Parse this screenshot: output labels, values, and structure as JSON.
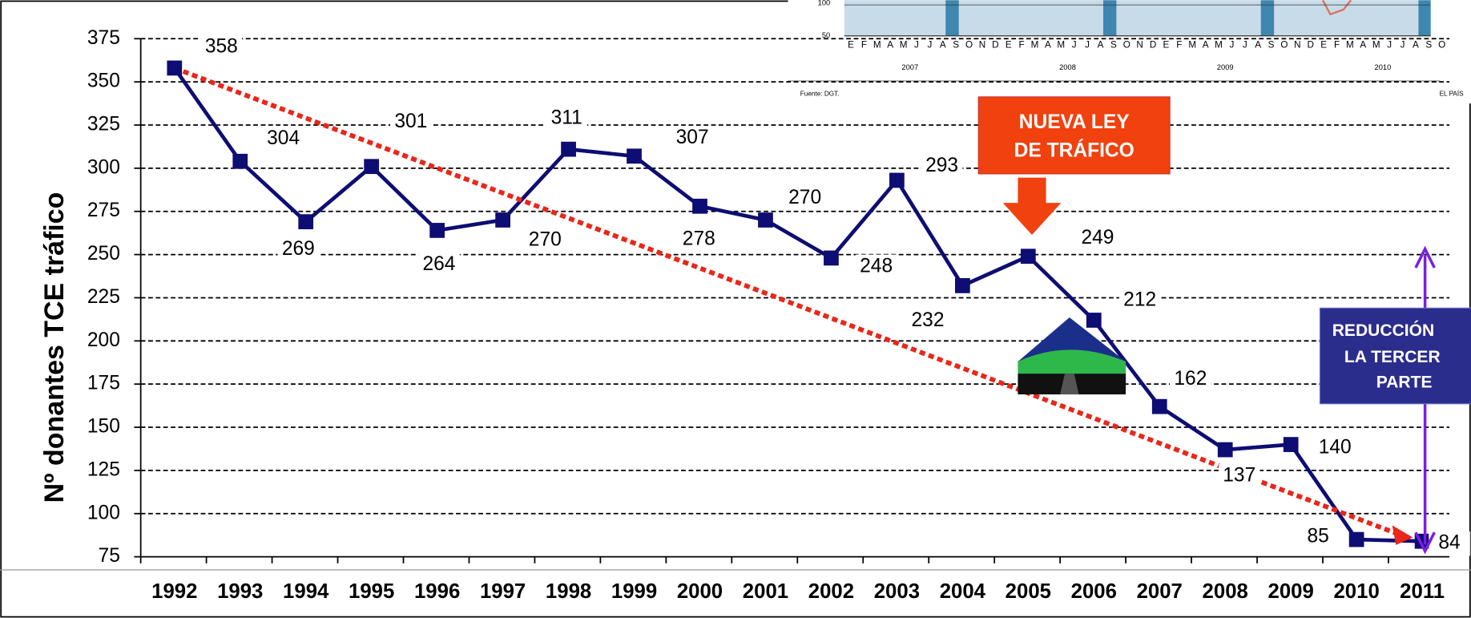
{
  "chart_data": {
    "type": "line",
    "y_label": "Nº donantes TCE tráfico",
    "categories": [
      "1992",
      "1993",
      "1994",
      "1995",
      "1996",
      "1997",
      "1998",
      "1999",
      "2000",
      "2001",
      "2002",
      "2003",
      "2004",
      "2005",
      "2006",
      "2007",
      "2008",
      "2009",
      "2010",
      "2011"
    ],
    "series": [
      {
        "name": "Nº donantes TCE tráfico",
        "color": "#0d0d73",
        "values": [
          358,
          304,
          269,
          301,
          264,
          270,
          311,
          307,
          278,
          270,
          248,
          293,
          232,
          249,
          212,
          162,
          137,
          140,
          85,
          84
        ]
      }
    ],
    "ylim": [
      75,
      375
    ],
    "yticks": [
      75,
      100,
      125,
      150,
      175,
      200,
      225,
      250,
      275,
      300,
      325,
      350,
      375
    ],
    "grid": true,
    "trend_color": "#e8271a",
    "annotations": {
      "law": [
        "NUEVA  LEY",
        "DE TRÁFICO"
      ],
      "reduction": [
        "REDUCCIÓN",
        "LA TERCER",
        "PARTE"
      ]
    },
    "inset": {
      "yticks": [
        "100",
        "50"
      ],
      "months": [
        "E",
        "F",
        "M",
        "A",
        "M",
        "J",
        "J",
        "A",
        "S",
        "O",
        "N",
        "D"
      ],
      "years": [
        "2007",
        "2008",
        "2009",
        "2010"
      ],
      "source": "Fuente: DGT.",
      "publisher": "EL PAÍS"
    }
  }
}
